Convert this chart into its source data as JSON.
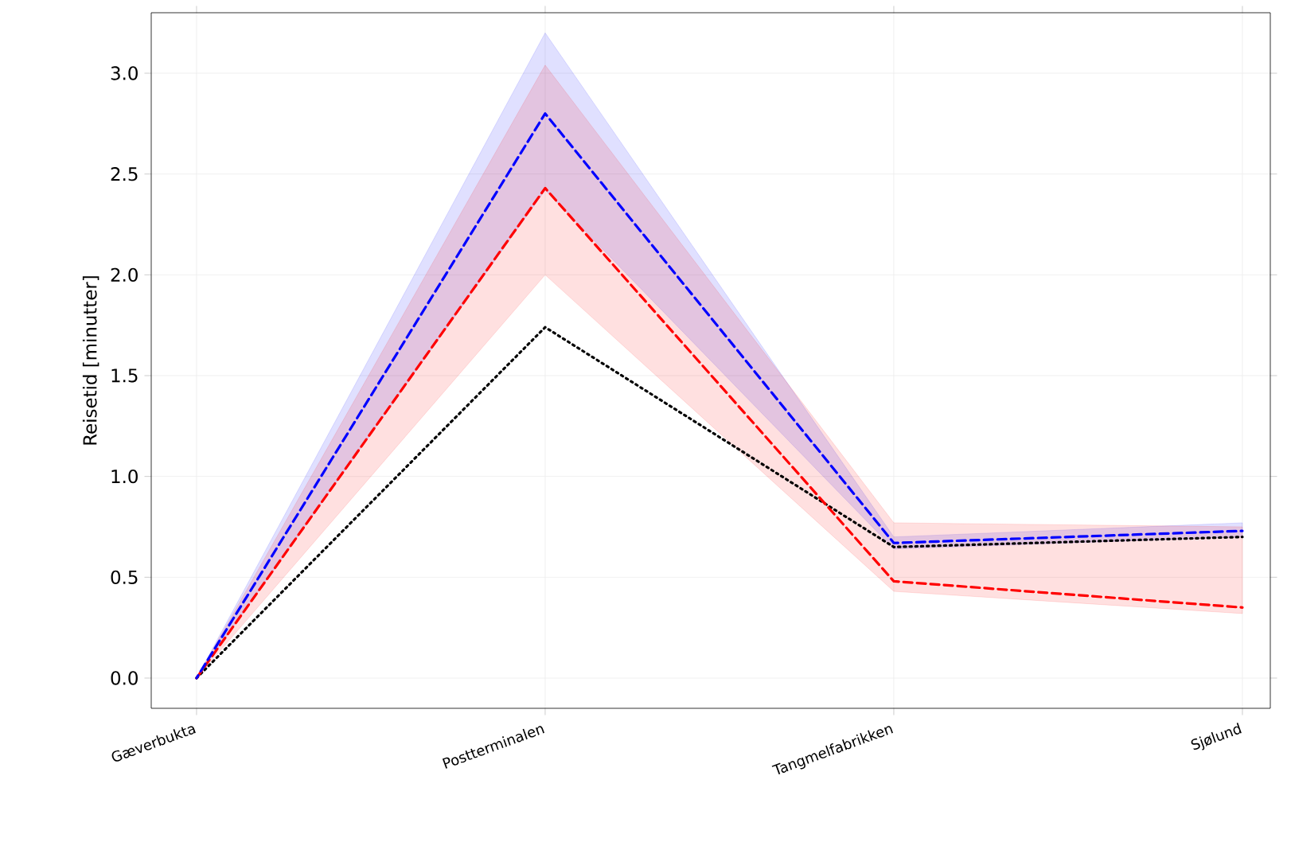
{
  "chart_data": {
    "type": "line",
    "ylabel": "Reisetid [minutter]",
    "categories": [
      "Gæverbukta",
      "Postterminalen",
      "Tangmelfabrikken",
      "Sjølund"
    ],
    "ylim": [
      -0.15,
      3.3
    ],
    "yticks": [
      {
        "value": 0,
        "label": "0.0"
      },
      0.5,
      {
        "value": 1,
        "label": "1.0"
      },
      1.5,
      {
        "value": 2,
        "label": "2.0"
      },
      2.5,
      {
        "value": 3,
        "label": "3.0"
      }
    ],
    "grid": true,
    "series": [
      {
        "color": "#0000ff",
        "line_style": "dashed",
        "values": [
          0,
          2.8,
          0.67,
          0.73
        ],
        "lower": [
          0,
          2.42,
          0.64,
          0.7
        ],
        "upper": [
          0,
          3.2,
          0.7,
          0.77
        ]
      },
      {
        "color": "#ff0000",
        "line_style": "dashed",
        "values": [
          0,
          2.43,
          0.48,
          0.35
        ],
        "lower": [
          0,
          2.0,
          0.43,
          0.32
        ],
        "upper": [
          0,
          3.04,
          0.77,
          0.75
        ]
      },
      {
        "color": "#000000",
        "line_style": "dotted",
        "values": [
          0,
          1.74,
          0.65,
          0.7
        ]
      }
    ]
  }
}
